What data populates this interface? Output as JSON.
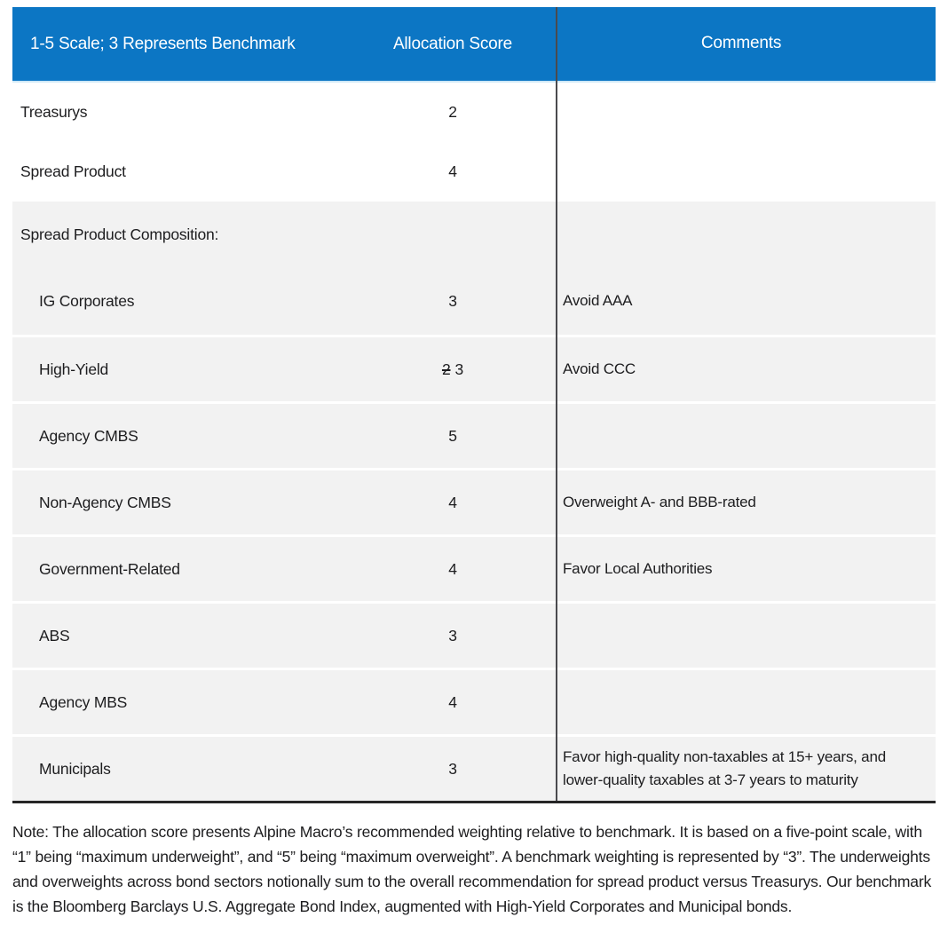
{
  "colors": {
    "header_bg": "#0c76c4",
    "header_text": "#ffffff",
    "row_alt_bg": "#f2f2f2",
    "column_divider_line": "#4a4a4e",
    "table_bottom_border": "#262626",
    "body_text": "#1d1d1f"
  },
  "chart_data": {
    "type": "table",
    "columns": [
      "1-5 Scale; 3 Represents Benchmark",
      "Allocation Score",
      "Comments"
    ],
    "rows": [
      {
        "sector": "Treasurys",
        "allocation_score": "2",
        "comment": "",
        "indent": false,
        "section_header": false
      },
      {
        "sector": "Spread Product",
        "allocation_score": "4",
        "comment": "",
        "indent": false,
        "section_header": false
      },
      {
        "sector": "Spread Product Composition:",
        "allocation_score": "",
        "comment": "",
        "indent": false,
        "section_header": true
      },
      {
        "sector": "IG Corporates",
        "allocation_score": "3",
        "comment": "Avoid AAA",
        "indent": true,
        "section_header": false
      },
      {
        "sector": "High-Yield",
        "allocation_score": "3",
        "struck_previous_score": "2",
        "comment": "Avoid CCC",
        "indent": true,
        "section_header": false
      },
      {
        "sector": "Agency CMBS",
        "allocation_score": "5",
        "comment": "",
        "indent": true,
        "section_header": false
      },
      {
        "sector": "Non-Agency CMBS",
        "allocation_score": "4",
        "comment": "Overweight A- and BBB-rated",
        "indent": true,
        "section_header": false
      },
      {
        "sector": "Government-Related",
        "allocation_score": "4",
        "comment": "Favor Local Authorities",
        "indent": true,
        "section_header": false
      },
      {
        "sector": "ABS",
        "allocation_score": "3",
        "comment": "",
        "indent": true,
        "section_header": false
      },
      {
        "sector": "Agency MBS",
        "allocation_score": "4",
        "comment": "",
        "indent": true,
        "section_header": false
      },
      {
        "sector": "Municipals",
        "allocation_score": "3",
        "comment": "Favor high-quality non-taxables at 15+ years, and lower-quality taxables at 3-7 years to maturity",
        "indent": true,
        "section_header": false
      }
    ],
    "scale_range": [
      1,
      5
    ],
    "benchmark_score": 3
  },
  "note": "Note: The allocation score presents Alpine Macro’s recommended weighting relative to benchmark. It is based on a five-point scale, with “1” being “maximum underweight”, and “5” being “maximum overweight”. A benchmark weighting is represented by “3”. The underweights and overweights across bond sectors notionally sum to the overall recommendation for spread product versus Treasurys. Our benchmark is the Bloomberg Barclays U.S. Aggregate Bond Index, augmented with High-Yield Corporates and Municipal bonds."
}
